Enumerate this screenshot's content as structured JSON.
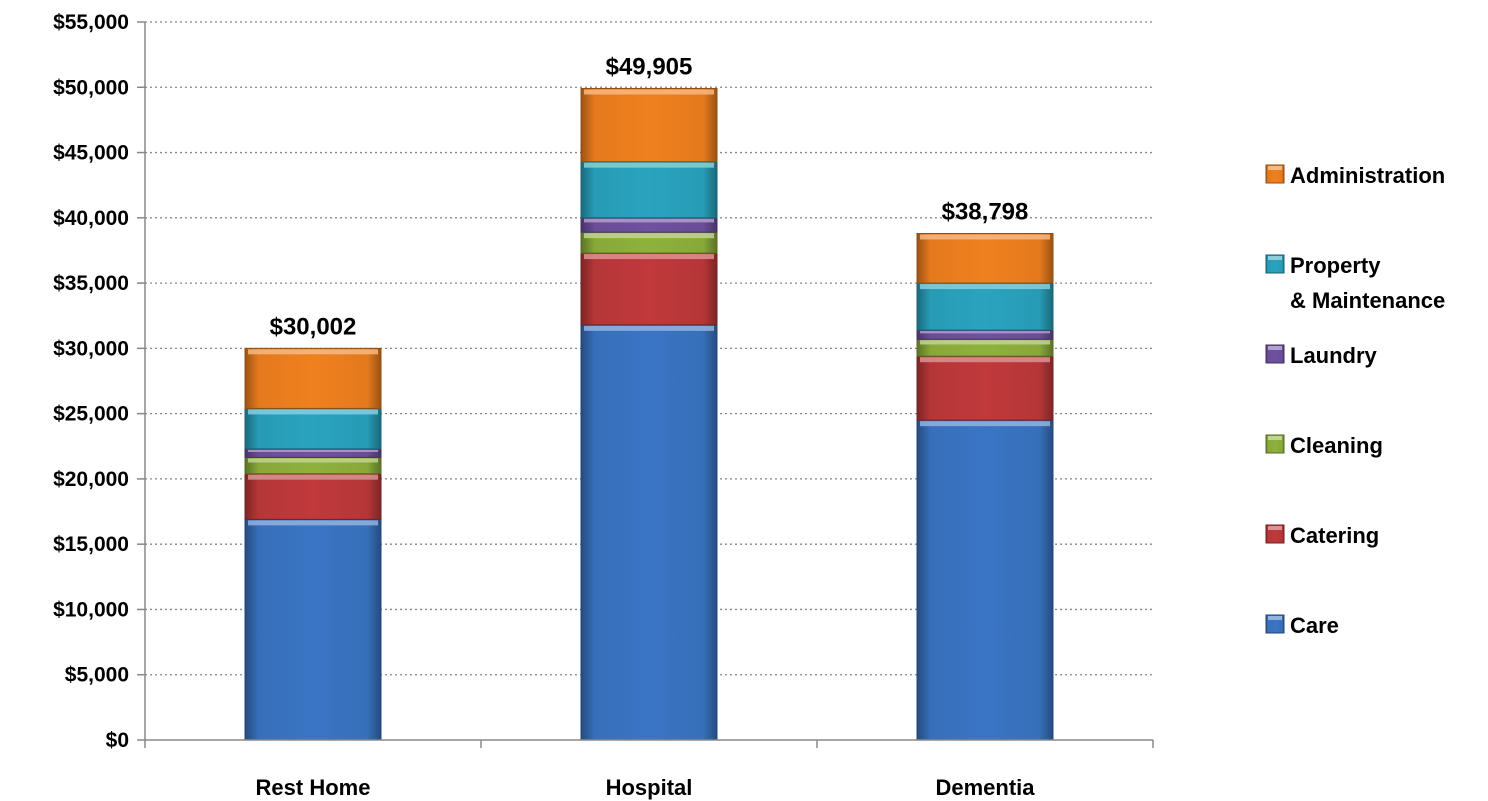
{
  "chart_data": {
    "type": "bar",
    "stacked": true,
    "categories": [
      "Rest Home",
      "Hospital",
      "Dementia"
    ],
    "series": [
      {
        "name": "Care",
        "color": "#3A75C4",
        "values": [
          16900,
          31800,
          24500
        ]
      },
      {
        "name": "Catering",
        "color": "#C0393B",
        "values": [
          3500,
          5500,
          4900
        ]
      },
      {
        "name": "Cleaning",
        "color": "#8FB13C",
        "values": [
          1250,
          1600,
          1300
        ]
      },
      {
        "name": "Laundry",
        "color": "#7050A0",
        "values": [
          650,
          1100,
          700
        ]
      },
      {
        "name": "Property\n& Maintenance",
        "color": "#2AA3BF",
        "values": [
          3100,
          4300,
          3600
        ]
      },
      {
        "name": "Administration",
        "color": "#F0801E",
        "values": [
          4602,
          5605,
          3798
        ]
      }
    ],
    "totals": [
      "$30,002",
      "$49,905",
      "$38,798"
    ],
    "ylim": [
      0,
      55000
    ],
    "yticks": [
      "$0",
      "$5,000",
      "$10,000",
      "$15,000",
      "$20,000",
      "$25,000",
      "$30,000",
      "$35,000",
      "$40,000",
      "$45,000",
      "$50,000",
      "$55,000"
    ],
    "grid": true,
    "legend_position": "right"
  }
}
